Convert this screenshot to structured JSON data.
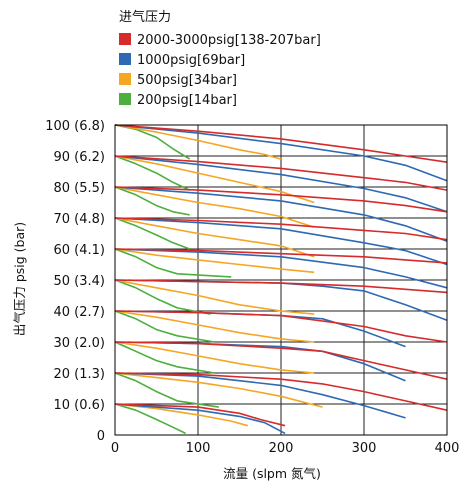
{
  "chart_data": {
    "type": "line",
    "title": "",
    "legend": {
      "title": "进气压力",
      "placement": "top-left",
      "entries": [
        {
          "label": "2000-3000psig[138-207bar]",
          "color": "#d62b2b"
        },
        {
          "label": "1000psig[69bar]",
          "color": "#2e6ab3"
        },
        {
          "label": "500psig[34bar]",
          "color": "#f5a623"
        },
        {
          "label": "200psig[14bar]",
          "color": "#4caf3e"
        }
      ]
    },
    "xlabel": "流量 (slpm 氮气)",
    "ylabel": "出气压力 psig (bar)",
    "xlim": [
      0,
      400
    ],
    "ylim": [
      0,
      100
    ],
    "grid": true,
    "xticks": [
      "0",
      "100",
      "200",
      "300",
      "400"
    ],
    "yticks": [
      "0",
      "10 (0.6)",
      "20 (1.3)",
      "30 (2.0)",
      "40 (2.7)",
      "50 (3.4)",
      "60 (4.1)",
      "70 (4.8)",
      "80 (5.5)",
      "90 (6.2)",
      "100 (6.8)"
    ],
    "series": [
      {
        "inlet": "200psig[14bar]",
        "setpoint": 100,
        "color": "#4caf3e",
        "points": [
          [
            0,
            100
          ],
          [
            25,
            98.6
          ],
          [
            50,
            96
          ],
          [
            70,
            92.3
          ],
          [
            90,
            89
          ]
        ]
      },
      {
        "inlet": "500psig[34bar]",
        "setpoint": 100,
        "color": "#f5a623",
        "points": [
          [
            0,
            100
          ],
          [
            50,
            97.7
          ],
          [
            100,
            95
          ],
          [
            150,
            92
          ],
          [
            180,
            90.5
          ],
          [
            200,
            89
          ]
        ]
      },
      {
        "inlet": "1000psig[69bar]",
        "setpoint": 100,
        "color": "#2e6ab3",
        "points": [
          [
            0,
            100
          ],
          [
            100,
            97.4
          ],
          [
            200,
            94
          ],
          [
            300,
            90
          ],
          [
            350,
            87
          ],
          [
            400,
            82
          ]
        ]
      },
      {
        "inlet": "2000-3000psig[138-207bar]",
        "setpoint": 100,
        "color": "#d62b2b",
        "points": [
          [
            0,
            100
          ],
          [
            100,
            98
          ],
          [
            200,
            95.5
          ],
          [
            300,
            92
          ],
          [
            350,
            90
          ],
          [
            400,
            88
          ]
        ]
      },
      {
        "inlet": "200psig[14bar]",
        "setpoint": 90,
        "color": "#4caf3e",
        "points": [
          [
            0,
            90
          ],
          [
            25,
            87.5
          ],
          [
            50,
            84.5
          ],
          [
            70,
            81.5
          ],
          [
            90,
            79
          ]
        ]
      },
      {
        "inlet": "500psig[34bar]",
        "setpoint": 90,
        "color": "#f5a623",
        "points": [
          [
            0,
            90
          ],
          [
            50,
            87.5
          ],
          [
            100,
            84.5
          ],
          [
            150,
            81.5
          ],
          [
            200,
            78.5
          ],
          [
            240,
            75
          ]
        ]
      },
      {
        "inlet": "1000psig[69bar]",
        "setpoint": 90,
        "color": "#2e6ab3",
        "points": [
          [
            0,
            90
          ],
          [
            100,
            87.3
          ],
          [
            200,
            84
          ],
          [
            300,
            79.5
          ],
          [
            350,
            76.5
          ],
          [
            400,
            72
          ]
        ]
      },
      {
        "inlet": "2000-3000psig[138-207bar]",
        "setpoint": 90,
        "color": "#d62b2b",
        "points": [
          [
            0,
            90
          ],
          [
            100,
            88.2
          ],
          [
            200,
            86
          ],
          [
            300,
            83
          ],
          [
            350,
            81.5
          ],
          [
            400,
            79
          ]
        ]
      },
      {
        "inlet": "200psig[14bar]",
        "setpoint": 80,
        "color": "#4caf3e",
        "points": [
          [
            0,
            80
          ],
          [
            25,
            77.5
          ],
          [
            50,
            74
          ],
          [
            70,
            72
          ],
          [
            90,
            71
          ]
        ]
      },
      {
        "inlet": "500psig[34bar]",
        "setpoint": 80,
        "color": "#f5a623",
        "points": [
          [
            0,
            80
          ],
          [
            50,
            77.5
          ],
          [
            100,
            75
          ],
          [
            150,
            73
          ],
          [
            200,
            70.5
          ],
          [
            240,
            67
          ]
        ]
      },
      {
        "inlet": "1000psig[69bar]",
        "setpoint": 80,
        "color": "#2e6ab3",
        "points": [
          [
            0,
            80
          ],
          [
            100,
            78
          ],
          [
            200,
            75.5
          ],
          [
            300,
            71
          ],
          [
            350,
            67.5
          ],
          [
            400,
            62.5
          ]
        ]
      },
      {
        "inlet": "2000-3000psig[138-207bar]",
        "setpoint": 80,
        "color": "#d62b2b",
        "points": [
          [
            0,
            80
          ],
          [
            100,
            79
          ],
          [
            200,
            77.5
          ],
          [
            300,
            75.5
          ],
          [
            350,
            74
          ],
          [
            400,
            72
          ]
        ]
      },
      {
        "inlet": "200psig[14bar]",
        "setpoint": 70,
        "color": "#4caf3e",
        "points": [
          [
            0,
            70
          ],
          [
            25,
            67.5
          ],
          [
            50,
            64.5
          ],
          [
            70,
            62
          ],
          [
            90,
            60
          ]
        ]
      },
      {
        "inlet": "500psig[34bar]",
        "setpoint": 70,
        "color": "#f5a623",
        "points": [
          [
            0,
            70
          ],
          [
            50,
            67.5
          ],
          [
            100,
            65
          ],
          [
            150,
            63
          ],
          [
            200,
            61
          ],
          [
            240,
            57.5
          ]
        ]
      },
      {
        "inlet": "1000psig[69bar]",
        "setpoint": 70,
        "color": "#2e6ab3",
        "points": [
          [
            0,
            70
          ],
          [
            100,
            68.5
          ],
          [
            200,
            66.5
          ],
          [
            300,
            62
          ],
          [
            350,
            59.5
          ],
          [
            400,
            55
          ]
        ]
      },
      {
        "inlet": "2000-3000psig[138-207bar]",
        "setpoint": 70,
        "color": "#d62b2b",
        "points": [
          [
            0,
            70
          ],
          [
            100,
            69.2
          ],
          [
            200,
            68
          ],
          [
            300,
            66
          ],
          [
            350,
            65
          ],
          [
            400,
            63
          ]
        ]
      },
      {
        "inlet": "200psig[14bar]",
        "setpoint": 60,
        "color": "#4caf3e",
        "points": [
          [
            0,
            60
          ],
          [
            25,
            57.5
          ],
          [
            50,
            54
          ],
          [
            75,
            52
          ],
          [
            140,
            51
          ]
        ]
      },
      {
        "inlet": "500psig[34bar]",
        "setpoint": 60,
        "color": "#f5a623",
        "points": [
          [
            0,
            60
          ],
          [
            50,
            58
          ],
          [
            100,
            56.5
          ],
          [
            150,
            55
          ],
          [
            200,
            53.5
          ],
          [
            240,
            52.5
          ]
        ]
      },
      {
        "inlet": "1000psig[69bar]",
        "setpoint": 60,
        "color": "#2e6ab3",
        "points": [
          [
            0,
            60
          ],
          [
            100,
            59
          ],
          [
            200,
            57.5
          ],
          [
            300,
            54
          ],
          [
            350,
            51
          ],
          [
            400,
            47.5
          ]
        ]
      },
      {
        "inlet": "2000-3000psig[138-207bar]",
        "setpoint": 60,
        "color": "#d62b2b",
        "points": [
          [
            0,
            60
          ],
          [
            100,
            59.5
          ],
          [
            200,
            58.5
          ],
          [
            300,
            57.5
          ],
          [
            350,
            56.5
          ],
          [
            400,
            55.5
          ]
        ]
      },
      {
        "inlet": "200psig[14bar]",
        "setpoint": 50,
        "color": "#4caf3e",
        "points": [
          [
            0,
            50
          ],
          [
            25,
            47.5
          ],
          [
            50,
            44
          ],
          [
            75,
            41
          ],
          [
            115,
            39
          ]
        ]
      },
      {
        "inlet": "500psig[34bar]",
        "setpoint": 50,
        "color": "#f5a623",
        "points": [
          [
            0,
            50
          ],
          [
            50,
            47.5
          ],
          [
            100,
            45
          ],
          [
            150,
            42
          ],
          [
            200,
            40
          ],
          [
            240,
            39
          ]
        ]
      },
      {
        "inlet": "1000psig[69bar]",
        "setpoint": 50,
        "color": "#2e6ab3",
        "points": [
          [
            0,
            50
          ],
          [
            100,
            49.5
          ],
          [
            200,
            49
          ],
          [
            250,
            48
          ],
          [
            300,
            46.5
          ],
          [
            350,
            42
          ],
          [
            400,
            37
          ]
        ]
      },
      {
        "inlet": "2000-3000psig[138-207bar]",
        "setpoint": 50,
        "color": "#d62b2b",
        "points": [
          [
            0,
            50
          ],
          [
            100,
            49.5
          ],
          [
            200,
            49
          ],
          [
            300,
            48
          ],
          [
            350,
            47
          ],
          [
            400,
            46
          ]
        ]
      },
      {
        "inlet": "200psig[14bar]",
        "setpoint": 40,
        "color": "#4caf3e",
        "points": [
          [
            0,
            40
          ],
          [
            25,
            37.5
          ],
          [
            50,
            34
          ],
          [
            75,
            32
          ],
          [
            120,
            30
          ]
        ]
      },
      {
        "inlet": "500psig[34bar]",
        "setpoint": 40,
        "color": "#f5a623",
        "points": [
          [
            0,
            40
          ],
          [
            50,
            38
          ],
          [
            100,
            35.5
          ],
          [
            150,
            33
          ],
          [
            200,
            31
          ],
          [
            240,
            30
          ]
        ]
      },
      {
        "inlet": "1000psig[69bar]",
        "setpoint": 40,
        "color": "#2e6ab3",
        "points": [
          [
            0,
            40
          ],
          [
            100,
            39.5
          ],
          [
            200,
            38.5
          ],
          [
            250,
            37.5
          ],
          [
            300,
            33.5
          ],
          [
            350,
            28.5
          ]
        ]
      },
      {
        "inlet": "2000-3000psig[138-207bar]",
        "setpoint": 40,
        "color": "#d62b2b",
        "points": [
          [
            0,
            40
          ],
          [
            100,
            39.5
          ],
          [
            200,
            38.5
          ],
          [
            300,
            35
          ],
          [
            350,
            32
          ],
          [
            400,
            30
          ]
        ]
      },
      {
        "inlet": "200psig[14bar]",
        "setpoint": 30,
        "color": "#4caf3e",
        "points": [
          [
            0,
            30
          ],
          [
            25,
            27
          ],
          [
            50,
            24
          ],
          [
            75,
            22
          ],
          [
            120,
            20
          ]
        ]
      },
      {
        "inlet": "500psig[34bar]",
        "setpoint": 30,
        "color": "#f5a623",
        "points": [
          [
            0,
            30
          ],
          [
            50,
            28
          ],
          [
            100,
            25.5
          ],
          [
            150,
            23
          ],
          [
            200,
            21
          ],
          [
            240,
            20
          ]
        ]
      },
      {
        "inlet": "1000psig[69bar]",
        "setpoint": 30,
        "color": "#2e6ab3",
        "points": [
          [
            0,
            30
          ],
          [
            100,
            29.5
          ],
          [
            200,
            28.5
          ],
          [
            250,
            27
          ],
          [
            300,
            23
          ],
          [
            350,
            17.5
          ]
        ]
      },
      {
        "inlet": "2000-3000psig[138-207bar]",
        "setpoint": 30,
        "color": "#d62b2b",
        "points": [
          [
            0,
            30
          ],
          [
            100,
            29.5
          ],
          [
            200,
            28
          ],
          [
            250,
            27
          ],
          [
            300,
            24
          ],
          [
            350,
            21
          ],
          [
            400,
            18
          ]
        ]
      },
      {
        "inlet": "200psig[14bar]",
        "setpoint": 20,
        "color": "#4caf3e",
        "points": [
          [
            0,
            20
          ],
          [
            25,
            17.5
          ],
          [
            50,
            14
          ],
          [
            75,
            11
          ],
          [
            125,
            9
          ]
        ]
      },
      {
        "inlet": "500psig[34bar]",
        "setpoint": 20,
        "color": "#f5a623",
        "points": [
          [
            0,
            20
          ],
          [
            50,
            18.5
          ],
          [
            100,
            17
          ],
          [
            150,
            15
          ],
          [
            200,
            12.5
          ],
          [
            250,
            9
          ]
        ]
      },
      {
        "inlet": "1000psig[69bar]",
        "setpoint": 20,
        "color": "#2e6ab3",
        "points": [
          [
            0,
            20
          ],
          [
            100,
            19
          ],
          [
            200,
            16
          ],
          [
            250,
            13
          ],
          [
            300,
            9.5
          ],
          [
            350,
            5.5
          ]
        ]
      },
      {
        "inlet": "2000-3000psig[138-207bar]",
        "setpoint": 20,
        "color": "#d62b2b",
        "points": [
          [
            0,
            20
          ],
          [
            100,
            19.5
          ],
          [
            200,
            18
          ],
          [
            250,
            16.5
          ],
          [
            300,
            14
          ],
          [
            350,
            11
          ],
          [
            400,
            8
          ]
        ]
      },
      {
        "inlet": "200psig[14bar]",
        "setpoint": 10,
        "color": "#4caf3e",
        "points": [
          [
            0,
            10
          ],
          [
            25,
            8
          ],
          [
            50,
            5
          ],
          [
            70,
            2.5
          ],
          [
            85,
            0.5
          ]
        ]
      },
      {
        "inlet": "500psig[34bar]",
        "setpoint": 10,
        "color": "#f5a623",
        "points": [
          [
            0,
            10
          ],
          [
            50,
            8.5
          ],
          [
            100,
            6.5
          ],
          [
            140,
            4.5
          ],
          [
            160,
            3
          ]
        ]
      },
      {
        "inlet": "1000psig[69bar]",
        "setpoint": 10,
        "color": "#2e6ab3",
        "points": [
          [
            0,
            10
          ],
          [
            100,
            8
          ],
          [
            150,
            6
          ],
          [
            180,
            4
          ],
          [
            205,
            0.5
          ]
        ]
      },
      {
        "inlet": "2000-3000psig[138-207bar]",
        "setpoint": 10,
        "color": "#d62b2b",
        "points": [
          [
            0,
            10
          ],
          [
            100,
            9
          ],
          [
            150,
            7
          ],
          [
            175,
            5
          ],
          [
            205,
            3
          ]
        ]
      }
    ]
  }
}
